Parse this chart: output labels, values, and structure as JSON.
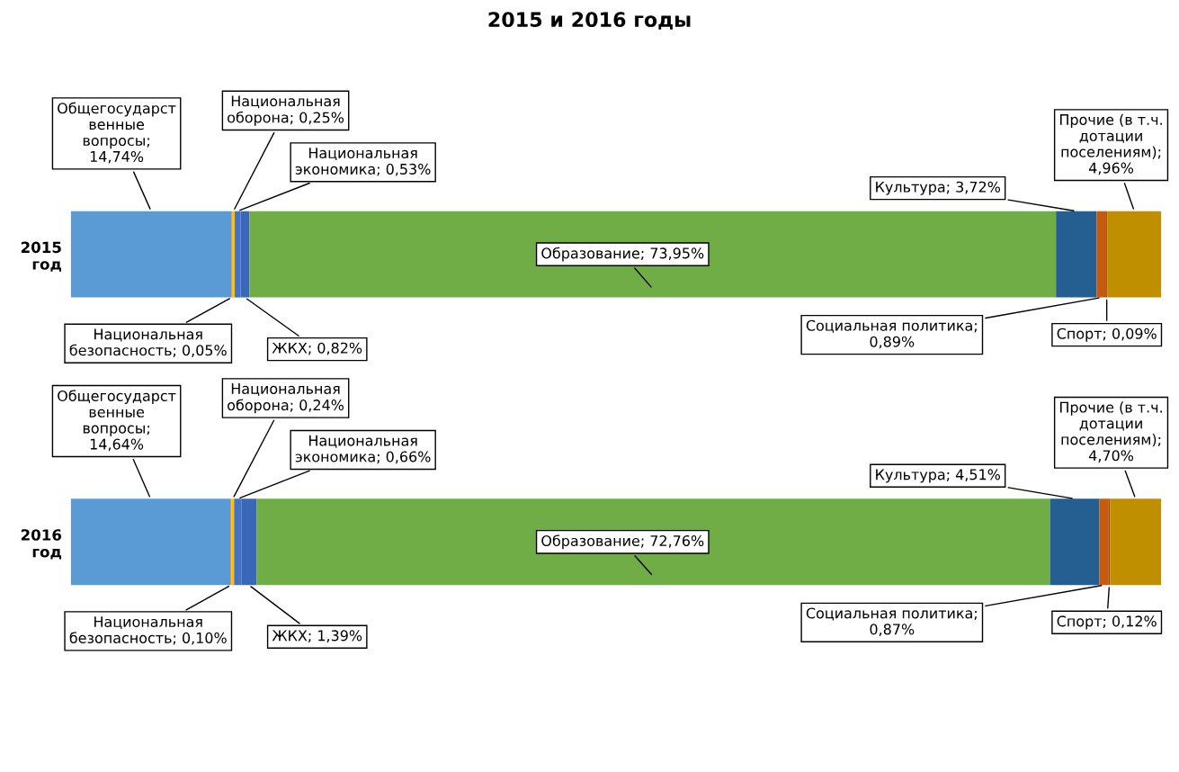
{
  "chart_data": {
    "type": "bar",
    "orientation": "horizontal",
    "stacked": true,
    "title": "2015 и 2016 годы",
    "categories": [
      "2015\nгод",
      "2016\nгод"
    ],
    "xlim": [
      0,
      100
    ],
    "tick_labels": "y",
    "grid": false,
    "legend": false,
    "series": [
      {
        "color": "#5b9bd5",
        "values": [
          14.74,
          14.64
        ],
        "value_labels": [
          "Общегосударст\nвенные\nвопросы;\n14,74%",
          "Общегосударст\nвенные\nвопросы;\n14,64%"
        ]
      },
      {
        "color": "#ed7d31",
        "values": [
          0.05,
          0.1
        ],
        "value_labels": [
          "Национальная\nбезопасность; 0,05%",
          "Национальная\nбезопасность; 0,10%"
        ]
      },
      {
        "color": "#ffc000",
        "values": [
          0.25,
          0.24
        ],
        "value_labels": [
          "Национальная\nоборона; 0,25%",
          "Национальная\nоборона; 0,24%"
        ]
      },
      {
        "color": "#4472c4",
        "values": [
          0.53,
          0.66
        ],
        "value_labels": [
          "Национальная\nэкономика; 0,53%",
          "Национальная\nэкономика; 0,66%"
        ]
      },
      {
        "color": "#3a67b8",
        "values": [
          0.82,
          1.39
        ],
        "value_labels": [
          "ЖКХ; 0,82%",
          "ЖКХ; 1,39%"
        ]
      },
      {
        "color": "#70ad47",
        "values": [
          73.95,
          72.76
        ],
        "value_labels": [
          "Образование; 73,95%",
          "Образование; 72,76%"
        ]
      },
      {
        "color": "#255e91",
        "values": [
          3.72,
          4.51
        ],
        "value_labels": [
          "Культура; 3,72%",
          "Культура; 4,51%"
        ]
      },
      {
        "color": "#c55a11",
        "values": [
          0.89,
          0.87
        ],
        "value_labels": [
          "Социальная политика;\n0,89%",
          "Социальная политика;\n0,87%"
        ]
      },
      {
        "color": "#9e480e",
        "values": [
          0.09,
          0.12
        ],
        "value_labels": [
          "Спорт; 0,09%",
          "Спорт; 0,12%"
        ]
      },
      {
        "color": "#bf8f00",
        "values": [
          4.96,
          4.7
        ],
        "value_labels": [
          "Прочие (в т.ч.\nдотации\nпоселениям);\n4,96%",
          "Прочие (в т.ч.\nдотации\nпоселениям);\n4,70%"
        ]
      }
    ]
  }
}
